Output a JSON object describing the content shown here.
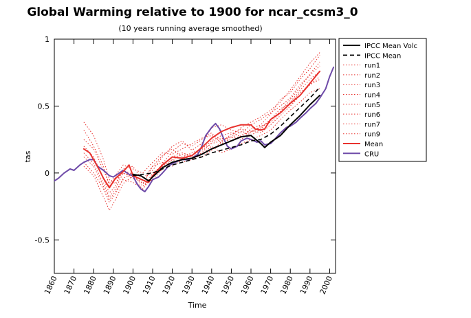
{
  "chart_data": {
    "type": "line",
    "title": "Global Warming relative to 1900 for ncar_ccsm3_0",
    "subtitle": "(10 years running average smoothed)",
    "xlabel": "Time",
    "ylabel": "tas",
    "xlim": [
      1860,
      2003
    ],
    "ylim": [
      -0.75,
      1
    ],
    "xticks": [
      {
        "value": 1860,
        "label": "1860"
      },
      {
        "value": 1870,
        "label": "1870"
      },
      {
        "value": 1880,
        "label": "1880"
      },
      {
        "value": 1890,
        "label": "1890"
      },
      {
        "value": 1900,
        "label": "1900"
      },
      {
        "value": 1910,
        "label": "1910"
      },
      {
        "value": 1920,
        "label": "1920"
      },
      {
        "value": 1930,
        "label": "1930"
      },
      {
        "value": 1940,
        "label": "1940"
      },
      {
        "value": 1950,
        "label": "1950"
      },
      {
        "value": 1960,
        "label": "1960"
      },
      {
        "value": 1970,
        "label": "1970"
      },
      {
        "value": 1980,
        "label": "1980"
      },
      {
        "value": 1990,
        "label": "1990"
      },
      {
        "value": 2000,
        "label": "2000"
      }
    ],
    "yticks": [
      {
        "value": 1,
        "label": "1"
      },
      {
        "value": 0.5,
        "label": "0.5"
      },
      {
        "value": 0,
        "label": "0"
      },
      {
        "value": -0.5,
        "label": "-0.5"
      }
    ],
    "legend_position": "outside-right",
    "series": [
      {
        "name": "IPCC Mean Volc",
        "color": "#000000",
        "width": 2,
        "dash": "",
        "x": [
          1900,
          1904,
          1906,
          1908,
          1910,
          1915,
          1920,
          1925,
          1930,
          1935,
          1940,
          1945,
          1950,
          1955,
          1960,
          1965,
          1967,
          1970,
          1975,
          1980,
          1985,
          1990,
          1995
        ],
        "y": [
          -0.01,
          -0.02,
          -0.04,
          -0.06,
          -0.03,
          0.04,
          0.08,
          0.1,
          0.11,
          0.14,
          0.18,
          0.21,
          0.24,
          0.27,
          0.28,
          0.22,
          0.19,
          0.23,
          0.28,
          0.36,
          0.43,
          0.51,
          0.58
        ]
      },
      {
        "name": "IPCC Mean",
        "color": "#000000",
        "width": 1.6,
        "dash": "6,4",
        "x": [
          1900,
          1905,
          1910,
          1915,
          1920,
          1925,
          1930,
          1935,
          1940,
          1945,
          1950,
          1955,
          1960,
          1965,
          1970,
          1975,
          1980,
          1985,
          1990,
          1995
        ],
        "y": [
          -0.02,
          -0.01,
          0.0,
          0.03,
          0.06,
          0.08,
          0.1,
          0.12,
          0.15,
          0.17,
          0.19,
          0.21,
          0.24,
          0.25,
          0.29,
          0.35,
          0.42,
          0.49,
          0.56,
          0.64
        ]
      },
      {
        "name": "run1",
        "color": "#e8322e",
        "width": 1,
        "dash": "1.5,2.5",
        "x": [
          1875,
          1880,
          1885,
          1888,
          1891,
          1895,
          1900,
          1905,
          1910,
          1915,
          1920,
          1925,
          1930,
          1935,
          1940,
          1945,
          1950,
          1955,
          1960,
          1965,
          1970,
          1975,
          1980,
          1985,
          1990,
          1995
        ],
        "y": [
          0.32,
          0.2,
          0.05,
          -0.1,
          -0.05,
          0.0,
          -0.03,
          -0.08,
          0.05,
          0.13,
          0.18,
          0.12,
          0.15,
          0.18,
          0.24,
          0.28,
          0.3,
          0.27,
          0.33,
          0.36,
          0.44,
          0.55,
          0.6,
          0.7,
          0.78,
          0.88
        ]
      },
      {
        "name": "run2",
        "color": "#e8322e",
        "width": 1,
        "dash": "1.5,2.5",
        "x": [
          1875,
          1880,
          1885,
          1888,
          1891,
          1895,
          1900,
          1905,
          1910,
          1915,
          1920,
          1925,
          1930,
          1935,
          1940,
          1945,
          1950,
          1955,
          1960,
          1965,
          1970,
          1975,
          1980,
          1985,
          1990,
          1995
        ],
        "y": [
          0.38,
          0.28,
          0.1,
          -0.05,
          -0.08,
          0.02,
          -0.01,
          -0.1,
          -0.03,
          0.07,
          0.16,
          0.22,
          0.2,
          0.25,
          0.3,
          0.22,
          0.26,
          0.31,
          0.28,
          0.33,
          0.4,
          0.48,
          0.52,
          0.6,
          0.66,
          0.7
        ]
      },
      {
        "name": "run3",
        "color": "#e8322e",
        "width": 1,
        "dash": "1.5,2.5",
        "x": [
          1875,
          1880,
          1885,
          1888,
          1891,
          1895,
          1900,
          1905,
          1910,
          1915,
          1920,
          1925,
          1930,
          1935,
          1940,
          1945,
          1950,
          1955,
          1960,
          1965,
          1970,
          1975,
          1980,
          1985,
          1990,
          1995
        ],
        "y": [
          0.12,
          0.05,
          -0.1,
          -0.2,
          -0.14,
          -0.05,
          -0.07,
          -0.12,
          -0.02,
          0.05,
          0.1,
          0.08,
          0.1,
          0.14,
          0.2,
          0.15,
          0.18,
          0.22,
          0.25,
          0.28,
          0.32,
          0.4,
          0.47,
          0.53,
          0.6,
          0.63
        ]
      },
      {
        "name": "run4",
        "color": "#e8322e",
        "width": 1,
        "dash": "1.5,2.5",
        "x": [
          1875,
          1880,
          1885,
          1888,
          1891,
          1895,
          1900,
          1905,
          1910,
          1915,
          1920,
          1925,
          1930,
          1935,
          1940,
          1945,
          1950,
          1955,
          1960,
          1965,
          1970,
          1975,
          1980,
          1985,
          1990,
          1995
        ],
        "y": [
          0.2,
          0.12,
          -0.04,
          -0.15,
          -0.1,
          0.03,
          0.05,
          -0.06,
          0.02,
          0.12,
          0.2,
          0.24,
          0.17,
          0.22,
          0.34,
          0.36,
          0.32,
          0.3,
          0.36,
          0.4,
          0.45,
          0.5,
          0.56,
          0.66,
          0.73,
          0.8
        ]
      },
      {
        "name": "run5",
        "color": "#e8322e",
        "width": 1,
        "dash": "1.5,2.5",
        "x": [
          1875,
          1880,
          1885,
          1888,
          1891,
          1895,
          1900,
          1905,
          1910,
          1915,
          1920,
          1925,
          1930,
          1935,
          1940,
          1945,
          1950,
          1955,
          1960,
          1965,
          1970,
          1975,
          1980,
          1985,
          1990,
          1995
        ],
        "y": [
          0.05,
          -0.02,
          -0.18,
          -0.28,
          -0.2,
          -0.08,
          -0.02,
          -0.05,
          0.05,
          0.08,
          0.05,
          0.1,
          0.13,
          0.12,
          0.17,
          0.23,
          0.29,
          0.33,
          0.3,
          0.35,
          0.38,
          0.45,
          0.53,
          0.62,
          0.7,
          0.76
        ]
      },
      {
        "name": "run6",
        "color": "#e8322e",
        "width": 1,
        "dash": "1.5,2.5",
        "x": [
          1875,
          1880,
          1885,
          1888,
          1891,
          1895,
          1900,
          1905,
          1910,
          1915,
          1920,
          1925,
          1930,
          1935,
          1940,
          1945,
          1950,
          1955,
          1960,
          1965,
          1970,
          1975,
          1980,
          1985,
          1990,
          1995
        ],
        "y": [
          0.25,
          0.18,
          0.02,
          -0.08,
          -0.02,
          0.06,
          0.03,
          0.0,
          0.08,
          0.15,
          0.14,
          0.18,
          0.22,
          0.26,
          0.28,
          0.25,
          0.27,
          0.34,
          0.38,
          0.42,
          0.47,
          0.53,
          0.62,
          0.72,
          0.82,
          0.9
        ]
      },
      {
        "name": "run7",
        "color": "#e8322e",
        "width": 1,
        "dash": "1.5,2.5",
        "x": [
          1875,
          1880,
          1885,
          1888,
          1891,
          1895,
          1900,
          1905,
          1910,
          1915,
          1920,
          1925,
          1930,
          1935,
          1940,
          1945,
          1950,
          1955,
          1960,
          1965,
          1970,
          1975,
          1980,
          1985,
          1990,
          1995
        ],
        "y": [
          0.08,
          0.0,
          -0.12,
          -0.22,
          -0.16,
          -0.04,
          0.0,
          -0.08,
          -0.05,
          0.03,
          0.1,
          0.14,
          0.12,
          0.15,
          0.23,
          0.26,
          0.24,
          0.28,
          0.32,
          0.3,
          0.36,
          0.43,
          0.5,
          0.58,
          0.66,
          0.72
        ]
      },
      {
        "name": "run9",
        "color": "#e8322e",
        "width": 1,
        "dash": "1.5,2.5",
        "x": [
          1875,
          1880,
          1885,
          1888,
          1891,
          1895,
          1900,
          1905,
          1910,
          1915,
          1920,
          1925,
          1930,
          1935,
          1940,
          1945,
          1950,
          1955,
          1960,
          1965,
          1970,
          1975,
          1980,
          1985,
          1990,
          1995
        ],
        "y": [
          0.15,
          0.07,
          -0.08,
          -0.18,
          -0.12,
          0.0,
          -0.04,
          -0.12,
          0.0,
          0.06,
          0.12,
          0.15,
          0.13,
          0.17,
          0.22,
          0.24,
          0.27,
          0.25,
          0.31,
          0.34,
          0.4,
          0.46,
          0.55,
          0.64,
          0.74,
          0.83
        ]
      },
      {
        "name": "Mean",
        "color": "#e8322e",
        "width": 2,
        "dash": "",
        "x": [
          1875,
          1878,
          1880,
          1883,
          1885,
          1888,
          1891,
          1895,
          1898,
          1900,
          1903,
          1906,
          1908,
          1910,
          1915,
          1920,
          1925,
          1930,
          1935,
          1940,
          1945,
          1950,
          1955,
          1960,
          1962,
          1965,
          1967,
          1970,
          1975,
          1980,
          1985,
          1990,
          1995
        ],
        "y": [
          0.18,
          0.15,
          0.1,
          0.02,
          -0.04,
          -0.11,
          -0.04,
          0.01,
          0.06,
          -0.02,
          -0.04,
          -0.06,
          -0.07,
          -0.02,
          0.06,
          0.12,
          0.11,
          0.13,
          0.19,
          0.26,
          0.31,
          0.34,
          0.36,
          0.36,
          0.33,
          0.32,
          0.33,
          0.4,
          0.45,
          0.52,
          0.58,
          0.67,
          0.76
        ]
      },
      {
        "name": "CRU",
        "color": "#6e4aa8",
        "width": 2,
        "dash": "",
        "x": [
          1860,
          1862,
          1865,
          1868,
          1870,
          1873,
          1875,
          1878,
          1880,
          1882,
          1885,
          1888,
          1890,
          1893,
          1895,
          1898,
          1900,
          1902,
          1904,
          1906,
          1908,
          1910,
          1913,
          1915,
          1918,
          1920,
          1923,
          1925,
          1928,
          1930,
          1933,
          1935,
          1937,
          1940,
          1942,
          1944,
          1946,
          1948,
          1950,
          1953,
          1955,
          1958,
          1960,
          1963,
          1965,
          1967,
          1970,
          1972,
          1975,
          1978,
          1980,
          1983,
          1985,
          1988,
          1990,
          1993,
          1995,
          1998,
          2000,
          2002
        ],
        "y": [
          -0.06,
          -0.04,
          0.0,
          0.03,
          0.02,
          0.06,
          0.08,
          0.1,
          0.1,
          0.05,
          0.02,
          -0.02,
          -0.03,
          0.0,
          0.02,
          -0.01,
          -0.02,
          -0.08,
          -0.12,
          -0.14,
          -0.1,
          -0.05,
          -0.03,
          0.0,
          0.05,
          0.07,
          0.09,
          0.1,
          0.1,
          0.11,
          0.14,
          0.2,
          0.28,
          0.34,
          0.37,
          0.33,
          0.26,
          0.2,
          0.18,
          0.2,
          0.24,
          0.26,
          0.25,
          0.23,
          0.24,
          0.21,
          0.22,
          0.25,
          0.3,
          0.34,
          0.35,
          0.38,
          0.41,
          0.45,
          0.48,
          0.52,
          0.56,
          0.63,
          0.72,
          0.79
        ]
      }
    ]
  }
}
